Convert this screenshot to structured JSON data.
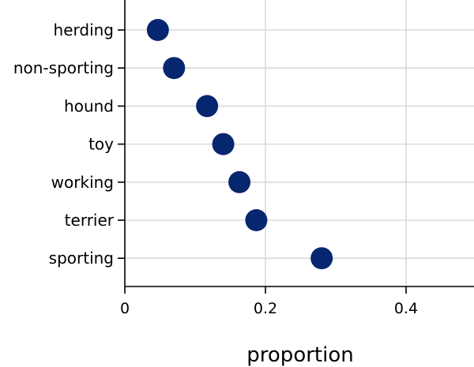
{
  "chart_data": {
    "type": "scatter",
    "title": "",
    "xlabel": "proportion",
    "ylabel": "",
    "categories": [
      "herding",
      "non-sporting",
      "hound",
      "toy",
      "working",
      "terrier",
      "sporting"
    ],
    "values": [
      0.047,
      0.07,
      0.117,
      0.14,
      0.163,
      0.187,
      0.28
    ],
    "xlim": [
      0,
      0.5
    ],
    "xticks": [
      0,
      0.2,
      0.4
    ],
    "xtick_labels": [
      "0",
      "0.2",
      "0.4"
    ],
    "grid": true,
    "legend": "none",
    "colors": {
      "point": "#06266f",
      "grid": "#d3d3d3",
      "axis": "#000000"
    }
  }
}
